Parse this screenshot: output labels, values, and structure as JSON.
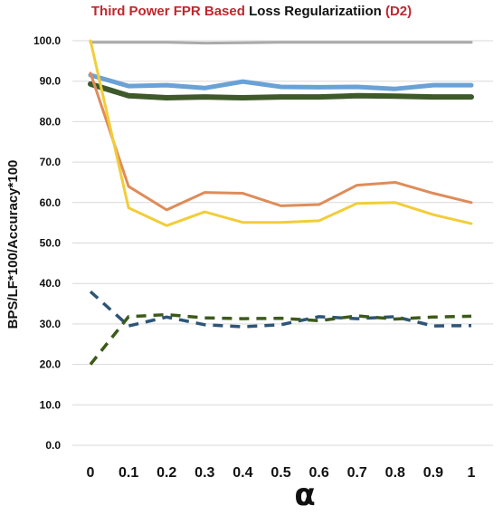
{
  "chart_data": {
    "type": "line",
    "title_parts": [
      {
        "text": "Third Power FPR Based",
        "color": "#c0272d"
      },
      {
        "text": "Loss Regularizatiion",
        "color": "#111111"
      },
      {
        "text": "(D2)",
        "color": "#c0272d"
      }
    ],
    "xlabel": "α",
    "ylabel": "BPS/LF*100/Accuracy*100",
    "categories": [
      "0",
      "0.1",
      "0.2",
      "0.3",
      "0.4",
      "0.5",
      "0.6",
      "0.7",
      "0.8",
      "0.9",
      "1"
    ],
    "x": [
      0,
      0.1,
      0.2,
      0.3,
      0.4,
      0.5,
      0.6,
      0.7,
      0.8,
      0.9,
      1
    ],
    "y_ticks": [
      "0.0",
      "10.0",
      "20.0",
      "30.0",
      "40.0",
      "50.0",
      "60.0",
      "70.0",
      "80.0",
      "90.0",
      "100.0"
    ],
    "ylim": [
      0,
      100
    ],
    "grid": true,
    "series": [
      {
        "color": "#aaaaaa",
        "width": 3,
        "dash": false,
        "values": [
          99.6,
          99.6,
          99.6,
          99.4,
          99.5,
          99.6,
          99.6,
          99.6,
          99.6,
          99.6,
          99.6
        ]
      },
      {
        "color": "#6aa1d6",
        "width": 5,
        "dash": false,
        "values": [
          91.5,
          88.8,
          89.0,
          88.3,
          89.9,
          88.6,
          88.5,
          88.6,
          88.1,
          89.0,
          89.0
        ]
      },
      {
        "color": "#3e5a2b",
        "width": 6,
        "dash": false,
        "values": [
          89.3,
          86.4,
          85.9,
          86.1,
          85.9,
          86.1,
          86.1,
          86.4,
          86.3,
          86.1,
          86.1
        ]
      },
      {
        "color": "#de8c5a",
        "width": 3,
        "dash": false,
        "values": [
          92.0,
          64.0,
          58.2,
          62.5,
          62.3,
          59.2,
          59.5,
          64.3,
          65.0,
          62.3,
          60.0
        ]
      },
      {
        "color": "#f2cd3a",
        "width": 3,
        "dash": false,
        "values": [
          100.0,
          58.7,
          54.3,
          57.7,
          55.1,
          55.1,
          55.5,
          59.8,
          60.0,
          57.0,
          54.8
        ]
      },
      {
        "color": "#2e5577",
        "width": 3.5,
        "dash": true,
        "values": [
          38.0,
          29.5,
          31.7,
          29.8,
          29.3,
          29.8,
          31.8,
          31.3,
          31.8,
          29.5,
          29.6
        ]
      },
      {
        "color": "#3d5a1c",
        "width": 3.5,
        "dash": true,
        "values": [
          20.0,
          31.8,
          32.3,
          31.5,
          31.3,
          31.4,
          30.8,
          32.0,
          31.2,
          31.7,
          31.9
        ]
      }
    ]
  }
}
